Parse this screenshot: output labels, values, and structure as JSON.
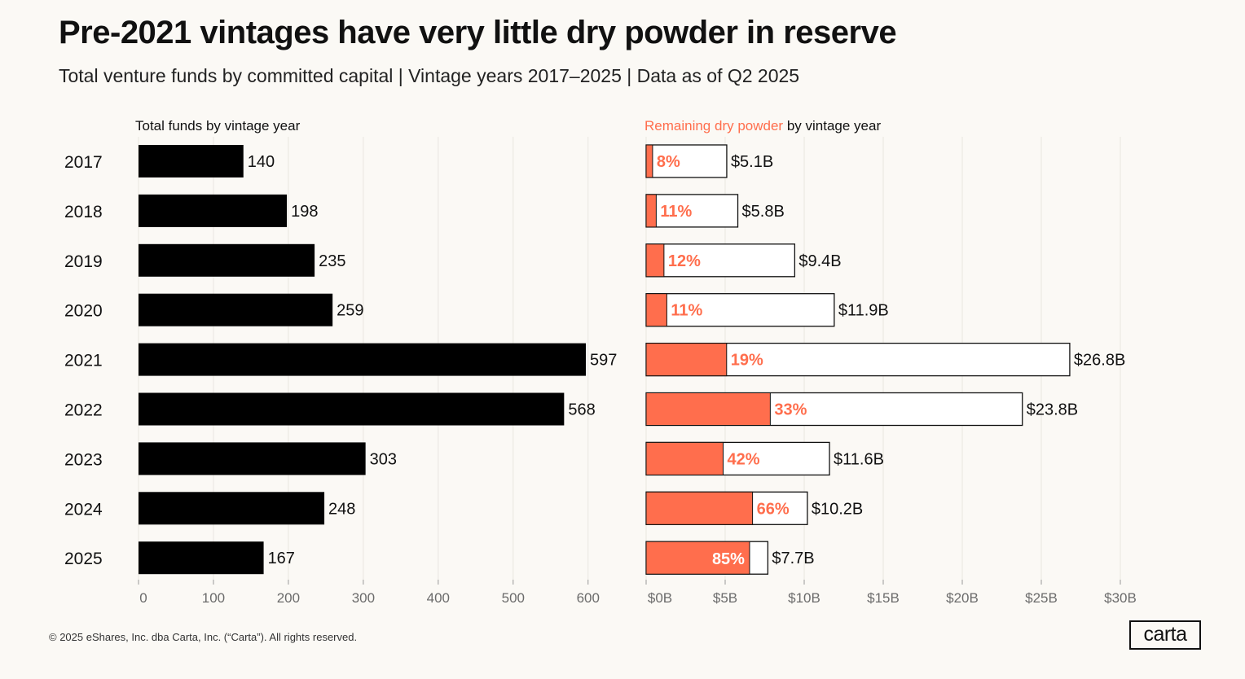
{
  "title": "Pre-2021 vintages have very little dry powder in reserve",
  "subtitle": "Total venture funds by committed capital | Vintage years 2017–2025 | Data as of Q2 2025",
  "footer": "© 2025 eShares, Inc. dba Carta, Inc. (“Carta”). All rights reserved.",
  "logo_text": "carta",
  "colors": {
    "background": "#fbf9f5",
    "bar_black": "#000000",
    "accent": "#ff6e4d",
    "grid": "#e9e6e0",
    "axis_text": "#6b6b6b"
  },
  "chart_data": [
    {
      "type": "bar",
      "orientation": "horizontal",
      "title": "Total funds by vintage year",
      "categories": [
        "2017",
        "2018",
        "2019",
        "2020",
        "2021",
        "2022",
        "2023",
        "2024",
        "2025"
      ],
      "values": [
        140,
        198,
        235,
        259,
        597,
        568,
        303,
        248,
        167
      ],
      "value_labels": [
        "140",
        "198",
        "235",
        "259",
        "597",
        "568",
        "303",
        "248",
        "167"
      ],
      "xlim": [
        0,
        650
      ],
      "xticks": [
        0,
        100,
        200,
        300,
        400,
        500,
        600
      ],
      "xtick_labels": [
        "0",
        "100",
        "200",
        "300",
        "400",
        "500",
        "600"
      ],
      "grid": true
    },
    {
      "type": "bar",
      "orientation": "horizontal",
      "title_highlight": "Remaining dry powder",
      "title_rest": " by vintage year",
      "categories": [
        "2017",
        "2018",
        "2019",
        "2020",
        "2021",
        "2022",
        "2023",
        "2024",
        "2025"
      ],
      "totals": [
        5.1,
        5.8,
        9.4,
        11.9,
        26.8,
        23.8,
        11.6,
        10.2,
        7.7
      ],
      "total_labels": [
        "$5.1B",
        "$5.8B",
        "$9.4B",
        "$11.9B",
        "$26.8B",
        "$23.8B",
        "$11.6B",
        "$10.2B",
        "$7.7B"
      ],
      "dry_powder_pct": [
        8,
        11,
        12,
        11,
        19,
        33,
        42,
        66,
        85
      ],
      "pct_labels": [
        "8%",
        "11%",
        "12%",
        "11%",
        "19%",
        "33%",
        "42%",
        "66%",
        "85%"
      ],
      "xlim": [
        0,
        31
      ],
      "xticks": [
        0,
        5,
        10,
        15,
        20,
        25,
        30
      ],
      "xtick_labels": [
        "$0B",
        "$5B",
        "$10B",
        "$15B",
        "$20B",
        "$25B",
        "$30B"
      ],
      "grid": true
    }
  ]
}
